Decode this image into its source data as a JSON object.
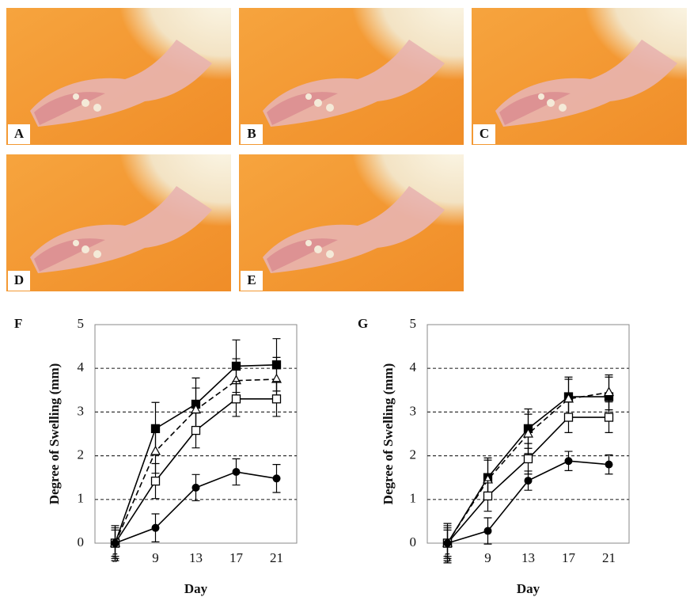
{
  "photo_panels": [
    "A",
    "B",
    "C",
    "D",
    "E"
  ],
  "chart_data": [
    {
      "type": "line",
      "panel_label": "F",
      "x_label": "Day",
      "y_label": "Degree of Swelling (mm)",
      "categories": [
        "5",
        "9",
        "13",
        "17",
        "21"
      ],
      "ylim": [
        0,
        5
      ],
      "yticks": [
        0,
        1,
        2,
        3,
        4,
        5
      ],
      "grid": true,
      "series": [
        {
          "color": "#000000",
          "marker": "square",
          "filled": true,
          "dashed": false,
          "values": [
            0,
            2.62,
            3.18,
            4.05,
            4.08
          ],
          "errors": [
            0.4,
            0.6,
            0.6,
            0.6,
            0.6
          ]
        },
        {
          "color": "#000000",
          "marker": "triangle",
          "filled": false,
          "dashed": true,
          "values": [
            0,
            2.1,
            3.05,
            3.72,
            3.75
          ],
          "errors": [
            0.4,
            0.5,
            0.5,
            0.5,
            0.5
          ]
        },
        {
          "color": "#000000",
          "marker": "square",
          "filled": false,
          "dashed": false,
          "values": [
            0,
            1.42,
            2.58,
            3.3,
            3.3
          ],
          "errors": [
            0.35,
            0.4,
            0.4,
            0.4,
            0.4
          ]
        },
        {
          "color": "#000000",
          "marker": "circle",
          "filled": true,
          "dashed": false,
          "values": [
            0,
            0.35,
            1.27,
            1.63,
            1.48
          ],
          "errors": [
            0.3,
            0.32,
            0.3,
            0.3,
            0.32
          ]
        }
      ]
    },
    {
      "type": "line",
      "panel_label": "G",
      "x_label": "Day",
      "y_label": "Degree of Swelling (mm)",
      "categories": [
        "5",
        "9",
        "13",
        "17",
        "21"
      ],
      "ylim": [
        0,
        5
      ],
      "yticks": [
        0,
        1,
        2,
        3,
        4,
        5
      ],
      "grid": true,
      "series": [
        {
          "color": "#000000",
          "marker": "square",
          "filled": true,
          "dashed": false,
          "values": [
            0,
            1.5,
            2.62,
            3.35,
            3.35
          ],
          "errors": [
            0.45,
            0.45,
            0.45,
            0.45,
            0.45
          ]
        },
        {
          "color": "#000000",
          "marker": "triangle",
          "filled": false,
          "dashed": true,
          "values": [
            0,
            1.45,
            2.5,
            3.3,
            3.45
          ],
          "errors": [
            0.4,
            0.45,
            0.45,
            0.45,
            0.4
          ]
        },
        {
          "color": "#000000",
          "marker": "square",
          "filled": false,
          "dashed": false,
          "values": [
            0,
            1.08,
            1.93,
            2.88,
            2.88
          ],
          "errors": [
            0.35,
            0.35,
            0.35,
            0.35,
            0.35
          ]
        },
        {
          "color": "#000000",
          "marker": "circle",
          "filled": true,
          "dashed": false,
          "values": [
            0,
            0.28,
            1.43,
            1.88,
            1.8
          ],
          "errors": [
            0.3,
            0.3,
            0.22,
            0.22,
            0.22
          ]
        }
      ]
    }
  ]
}
